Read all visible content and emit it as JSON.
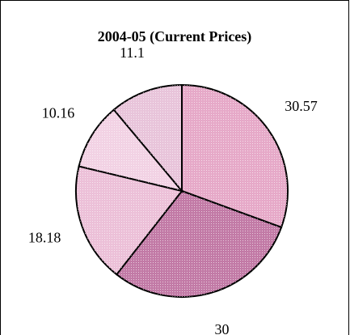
{
  "chart_data": {
    "type": "pie",
    "title": "2004-05 (Current Prices)",
    "values": [
      30.57,
      30.0,
      18.18,
      10.16,
      11.1
    ],
    "colors": [
      "#e6a9c8",
      "#c27aa6",
      "#ecc0d8",
      "#f2d2e4",
      "#e8c4da"
    ]
  }
}
